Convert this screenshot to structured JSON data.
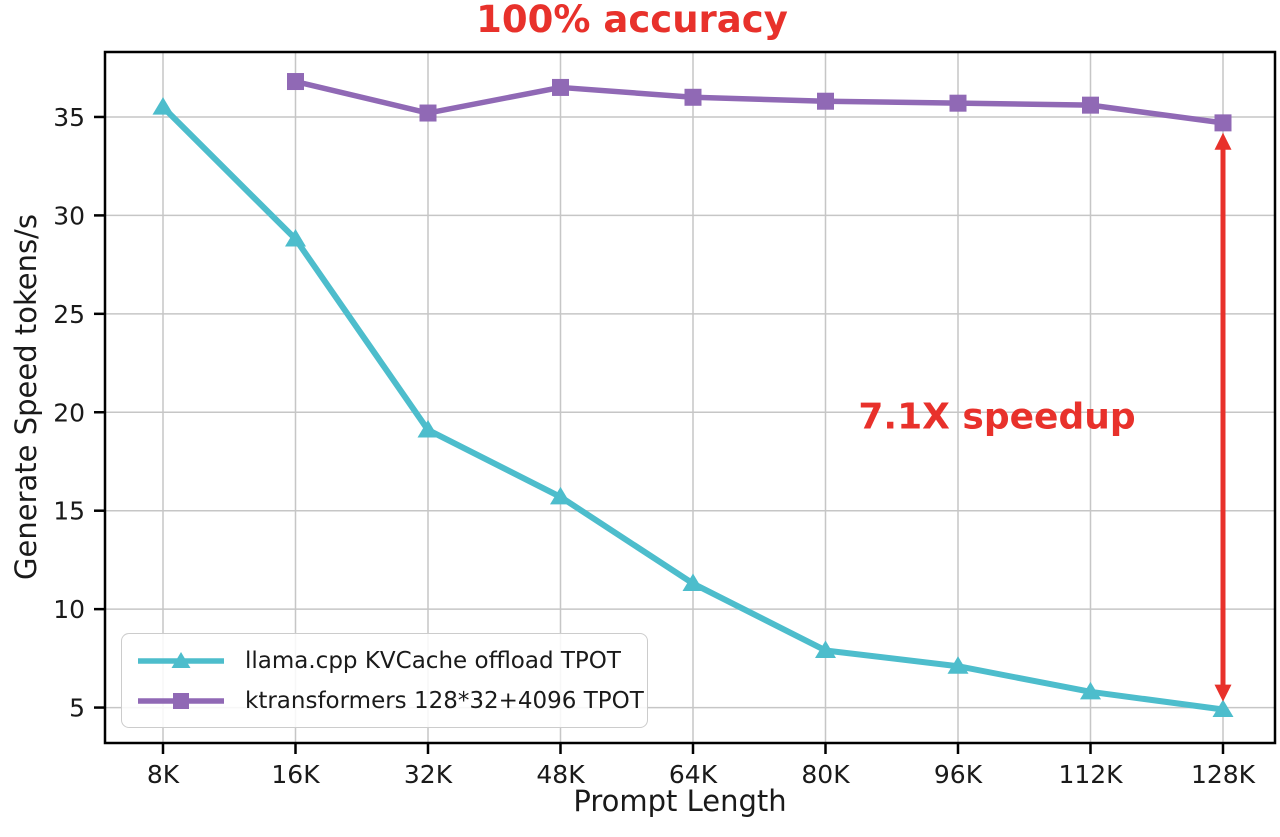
{
  "chart_data": {
    "type": "line",
    "title": "100% accuracy",
    "title_color": "#e8312b",
    "xlabel": "Prompt Length",
    "ylabel": "Generate Speed tokens/s",
    "categories": [
      "8K",
      "16K",
      "32K",
      "48K",
      "64K",
      "80K",
      "96K",
      "112K",
      "128K"
    ],
    "yticks": [
      5,
      10,
      15,
      20,
      25,
      30,
      35
    ],
    "ylim": [
      3.2,
      38.3
    ],
    "grid": true,
    "legend_position": "lower left",
    "series": [
      {
        "name": "llama.cpp KVCache offload TPOT",
        "marker": "triangle-up",
        "color": "#4dbdcc",
        "values": [
          35.5,
          28.8,
          19.1,
          15.7,
          11.3,
          7.9,
          7.1,
          5.8,
          4.9
        ]
      },
      {
        "name": "ktransformers 128*32+4096 TPOT",
        "marker": "square",
        "color": "#9069b5",
        "values": [
          null,
          36.8,
          35.2,
          36.5,
          36.0,
          35.8,
          35.7,
          35.6,
          34.7
        ]
      }
    ],
    "annotation": {
      "text": "7.1X speedup",
      "color": "#e8312b"
    },
    "arrow": {
      "x_category": "128K",
      "from_value": 34.2,
      "to_value": 5.3,
      "style": "double-headed",
      "color": "#e8312b"
    },
    "colors": {
      "grid": "#c6c6c6",
      "axes": "#000000",
      "text": "#1a1a1a",
      "background": "#ffffff"
    }
  }
}
